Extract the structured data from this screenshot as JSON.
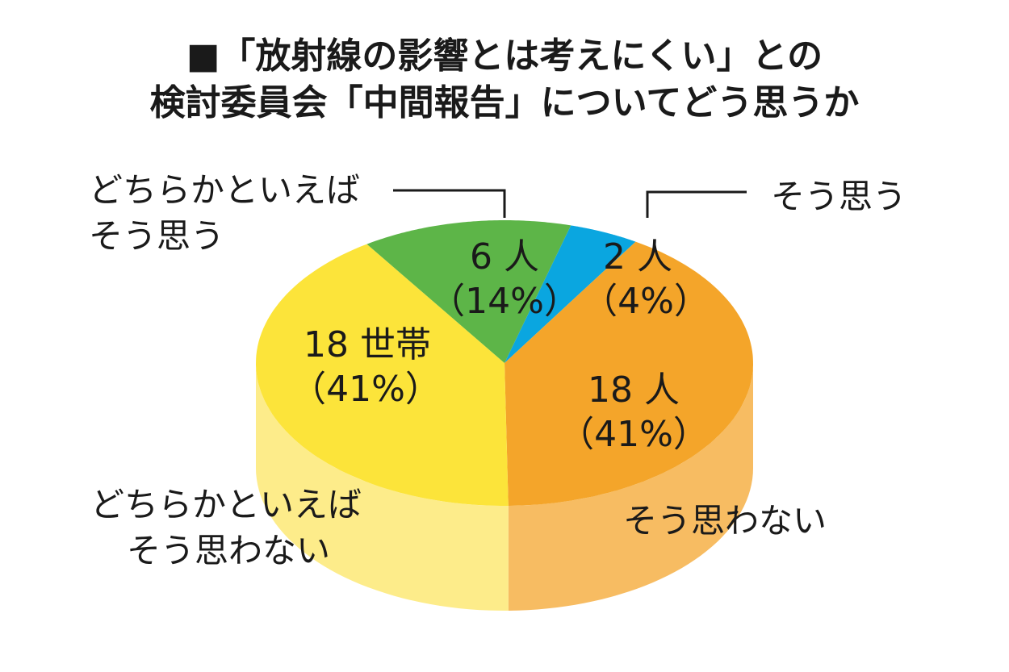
{
  "chart_data": {
    "type": "pie",
    "title_lines": [
      "■「放射線の影響とは考えにくい」との",
      "検討委員会「中間報告」についてどう思うか"
    ],
    "categories": [
      "そう思う",
      "そう思わない",
      "どちらかといえばそう思わない",
      "どちらかといえばそう思う"
    ],
    "series": [
      {
        "values": [
          2,
          18,
          18,
          6
        ],
        "percents": [
          4,
          41,
          41,
          14
        ]
      }
    ],
    "category_label_lines": [
      [
        "そう思う"
      ],
      [
        "そう思わない"
      ],
      [
        "どちらかといえば",
        "そう思わない"
      ],
      [
        "どちらかといえば",
        "そう思う"
      ]
    ],
    "count_labels": [
      "2 人",
      "18 人",
      "18 世帯",
      "6 人"
    ],
    "percent_labels": [
      "（4%）",
      "（41%）",
      "（41%）",
      "（14%）"
    ],
    "colors": [
      "#0aa6e0",
      "#f4a52a",
      "#fce43a",
      "#5db548"
    ],
    "side_colors": [
      "#5fc4ea",
      "#f7bc62",
      "#fdec8a",
      "#8ccb7c"
    ],
    "legend": "none",
    "start": "top, clockwise",
    "style": "3d"
  }
}
